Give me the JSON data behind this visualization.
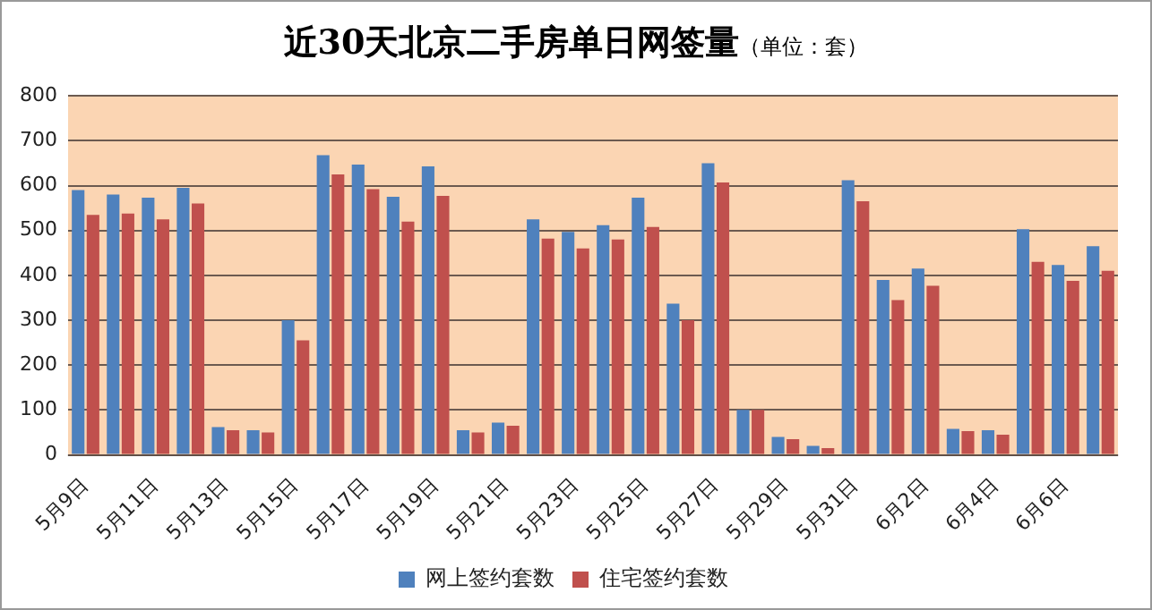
{
  "chart_data": {
    "type": "bar",
    "title": "近30天北京二手房单日网签量",
    "subtitle": "（单位：套）",
    "categories": [
      "5月9日",
      null,
      "5月11日",
      null,
      "5月13日",
      null,
      "5月15日",
      null,
      "5月17日",
      null,
      "5月19日",
      null,
      "5月21日",
      null,
      "5月23日",
      null,
      "5月25日",
      null,
      "5月27日",
      null,
      "5月29日",
      null,
      "5月31日",
      null,
      "6月2日",
      null,
      "6月4日",
      null,
      "6月6日",
      null
    ],
    "series": [
      {
        "name": "网上签约套数",
        "color": "#4f81bd",
        "values": [
          590,
          580,
          573,
          595,
          62,
          55,
          300,
          668,
          647,
          575,
          643,
          55,
          72,
          525,
          497,
          512,
          573,
          337,
          650,
          100,
          40,
          20,
          612,
          390,
          415,
          58,
          55,
          503,
          423,
          465
        ]
      },
      {
        "name": "住宅签约套数",
        "color": "#c0504d",
        "values": [
          535,
          538,
          525,
          560,
          55,
          50,
          255,
          625,
          592,
          520,
          577,
          50,
          65,
          482,
          460,
          480,
          508,
          300,
          607,
          100,
          35,
          15,
          565,
          345,
          377,
          53,
          45,
          430,
          388,
          410
        ]
      }
    ],
    "ylim": [
      0,
      800
    ],
    "yticks": [
      0,
      100,
      200,
      300,
      400,
      500,
      600,
      700,
      800
    ],
    "grid": "y",
    "legend": "bottom"
  }
}
